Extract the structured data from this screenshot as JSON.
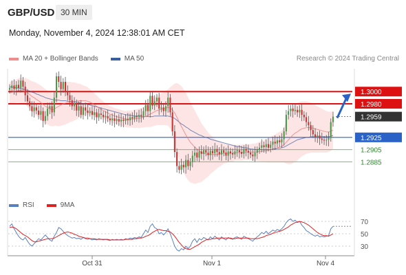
{
  "header": {
    "symbol": "GBP/USD",
    "timeframe": "30 MIN",
    "datetime": "Monday, November 4, 2024 12:38:01 AM CET"
  },
  "legend": {
    "price": [
      {
        "label": "MA 20 + Bollinger Bands",
        "color": "#f08c8c"
      },
      {
        "label": "MA 50",
        "color": "#3a5fa0"
      }
    ],
    "rsi": [
      {
        "label": "RSI",
        "color": "#5a7fc0"
      },
      {
        "label": "9MA",
        "color": "#dd2222"
      }
    ]
  },
  "credit": "Research © 2024 Trading Central",
  "colors": {
    "up_candle": "#4a9a4a",
    "down_candle": "#c83232",
    "resistance": "#dd1111",
    "pivot": "#2a62c8",
    "support": "#6fbf6f",
    "last_price": "#333333",
    "band_fill": "#fde0e0",
    "arrow": "#2a62c8"
  },
  "chart_data": {
    "type": "candlestick",
    "price_range": [
      1.2855,
      1.3043
    ],
    "x_tick_labels": [
      "Oct 31",
      "Nov 1",
      "Nov 4"
    ],
    "levels": [
      {
        "label": "1.3000",
        "value": 1.3,
        "role": "resistance"
      },
      {
        "label": "1.2980",
        "value": 1.298,
        "role": "resistance"
      },
      {
        "label": "1.2959",
        "value": 1.2959,
        "role": "last"
      },
      {
        "label": "1.2925",
        "value": 1.2925,
        "role": "pivot"
      },
      {
        "label": "1.2905",
        "value": 1.2905,
        "role": "support"
      },
      {
        "label": "1.2885",
        "value": 1.2885,
        "role": "support"
      }
    ],
    "close": [
      1.3006,
      1.301,
      1.3004,
      1.3011,
      1.3006,
      1.3018,
      1.3008,
      1.2994,
      1.2984,
      1.2976,
      1.2968,
      1.2974,
      1.2969,
      1.2962,
      1.2968,
      1.2952,
      1.296,
      1.2972,
      1.2976,
      1.2966,
      1.299,
      1.3025,
      1.3016,
      1.3004,
      1.3016,
      1.3,
      1.2994,
      1.2986,
      1.2976,
      1.2981,
      1.2969,
      1.2976,
      1.2962,
      1.2974,
      1.2969,
      1.2965,
      1.2968,
      1.2962,
      1.2966,
      1.2958,
      1.2964,
      1.2962,
      1.2958,
      1.296,
      1.2956,
      1.2953,
      1.2956,
      1.2952,
      1.2955,
      1.2951,
      1.2954,
      1.2952,
      1.2955,
      1.2953,
      1.2958,
      1.2956,
      1.296,
      1.2958,
      1.2962,
      1.296,
      1.2968,
      1.2978,
      1.2968,
      1.2993,
      1.2977,
      1.2984,
      1.299,
      1.2972,
      1.2974,
      1.2968,
      1.2976,
      1.299,
      1.2966,
      1.2935,
      1.2901,
      1.2878,
      1.2872,
      1.288,
      1.2876,
      1.2888,
      1.2878,
      1.2885,
      1.2895,
      1.29,
      1.2892,
      1.2902,
      1.2898,
      1.2904,
      1.29,
      1.2896,
      1.2903,
      1.2899,
      1.2906,
      1.2901,
      1.2897,
      1.2904,
      1.29,
      1.2895,
      1.2902,
      1.2899,
      1.2897,
      1.2902,
      1.2904,
      1.2901,
      1.2898,
      1.2906,
      1.2903,
      1.29,
      1.2897,
      1.2894,
      1.29,
      1.2904,
      1.2908,
      1.2912,
      1.2909,
      1.2914,
      1.2908,
      1.2913,
      1.2918,
      1.2915,
      1.292,
      1.2917,
      1.2922,
      1.2935,
      1.2962,
      1.2968,
      1.2972,
      1.2968,
      1.297,
      1.2966,
      1.297,
      1.2962,
      1.2958,
      1.295,
      1.2945,
      1.2937,
      1.293,
      1.2925,
      1.2928,
      1.2923,
      1.2921,
      1.292,
      1.2921,
      1.2924,
      1.295,
      1.2959
    ],
    "ma20": [
      1.2998,
      1.2999,
      1.3,
      1.3001,
      1.3002,
      1.3002,
      1.3001,
      1.3,
      1.2998,
      1.2995,
      1.2992,
      1.299,
      1.2987,
      1.2985,
      1.2982,
      1.2979,
      1.2976,
      1.2974,
      1.2972,
      1.297,
      1.2971,
      1.2974,
      1.2976,
      1.2978,
      1.298,
      1.2981,
      1.2982,
      1.2983,
      1.2983,
      1.2984,
      1.2984,
      1.2985,
      1.2985,
      1.2985,
      1.2985,
      1.2984,
      1.2983,
      1.2981,
      1.2978,
      1.2976,
      1.2973,
      1.2971,
      1.2969,
      1.2967,
      1.2965,
      1.2963,
      1.2962,
      1.296,
      1.2959,
      1.2958,
      1.2957,
      1.2956,
      1.2955,
      1.2955,
      1.2955,
      1.2955,
      1.2955,
      1.2956,
      1.2956,
      1.2957,
      1.2958,
      1.296,
      1.2961,
      1.2963,
      1.2965,
      1.2967,
      1.2969,
      1.297,
      1.2971,
      1.2972,
      1.2973,
      1.2974,
      1.2973,
      1.297,
      1.2965,
      1.2958,
      1.295,
      1.2943,
      1.2936,
      1.2929,
      1.2923,
      1.2917,
      1.2913,
      1.2909,
      1.2906,
      1.2903,
      1.29,
      1.2899,
      1.2898,
      1.2897,
      1.2897,
      1.2897,
      1.2897,
      1.2897,
      1.2898,
      1.2898,
      1.2899,
      1.2899,
      1.2899,
      1.2899,
      1.2899,
      1.29,
      1.29,
      1.29,
      1.29,
      1.2901,
      1.2901,
      1.2901,
      1.2901,
      1.2901,
      1.2901,
      1.2901,
      1.2902,
      1.2902,
      1.2903,
      1.2903,
      1.2904,
      1.2905,
      1.2906,
      1.2907,
      1.2908,
      1.2909,
      1.291,
      1.2913,
      1.2917,
      1.2921,
      1.2925,
      1.2929,
      1.2932,
      1.2934,
      1.2937,
      1.2939,
      1.294,
      1.2941,
      1.2941,
      1.2941,
      1.294,
      1.2939,
      1.2938,
      1.2937,
      1.2936,
      1.2935,
      1.2934,
      1.2934,
      1.2935,
      1.2937
    ],
    "ma50": [
      1.3008,
      1.3007,
      1.3007,
      1.3006,
      1.3006,
      1.3005,
      1.3004,
      1.3003,
      1.3002,
      1.3001,
      1.2999,
      1.2998,
      1.2996,
      1.2995,
      1.2993,
      1.2992,
      1.299,
      1.2989,
      1.2988,
      1.2987,
      1.2986,
      1.2986,
      1.2986,
      1.2985,
      1.2985,
      1.2985,
      1.2984,
      1.2984,
      1.2983,
      1.2983,
      1.2982,
      1.2982,
      1.2981,
      1.298,
      1.298,
      1.2979,
      1.2978,
      1.2977,
      1.2976,
      1.2975,
      1.2974,
      1.2973,
      1.2972,
      1.2971,
      1.297,
      1.2969,
      1.2968,
      1.2967,
      1.2966,
      1.2965,
      1.2964,
      1.2963,
      1.2962,
      1.2962,
      1.2961,
      1.2961,
      1.296,
      1.296,
      1.296,
      1.2959,
      1.2959,
      1.2959,
      1.2959,
      1.2959,
      1.2959,
      1.296,
      1.296,
      1.296,
      1.296,
      1.296,
      1.296,
      1.296,
      1.2959,
      1.2958,
      1.2956,
      1.2953,
      1.295,
      1.2947,
      1.2945,
      1.2942,
      1.294,
      1.2937,
      1.2935,
      1.2933,
      1.2931,
      1.2929,
      1.2928,
      1.2926,
      1.2925,
      1.2924,
      1.2922,
      1.2921,
      1.292,
      1.2919,
      1.2918,
      1.2917,
      1.2916,
      1.2915,
      1.2914,
      1.2913,
      1.2912,
      1.2911,
      1.291,
      1.291,
      1.2909,
      1.2908,
      1.2908,
      1.2907,
      1.2906,
      1.2906,
      1.2905,
      1.2905,
      1.2905,
      1.2905,
      1.2905,
      1.2905,
      1.2905,
      1.2905,
      1.2906,
      1.2906,
      1.2907,
      1.2907,
      1.2908,
      1.2909,
      1.2911,
      1.2913,
      1.2915,
      1.2917,
      1.2919,
      1.2921,
      1.2922,
      1.2923,
      1.2924,
      1.2925,
      1.2925,
      1.2926,
      1.2926,
      1.2926,
      1.2926,
      1.2926,
      1.2926,
      1.2926,
      1.2926,
      1.2926,
      1.2927,
      1.2928
    ],
    "band_width": [
      0.0018,
      0.0018,
      0.0019,
      0.0019,
      0.002,
      0.0021,
      0.0021,
      0.0022,
      0.0023,
      0.0024,
      0.0025,
      0.0026,
      0.0027,
      0.0027,
      0.0028,
      0.0028,
      0.0028,
      0.0028,
      0.0028,
      0.0027,
      0.0027,
      0.003,
      0.0033,
      0.0034,
      0.0035,
      0.0035,
      0.0034,
      0.0033,
      0.0032,
      0.0031,
      0.003,
      0.0028,
      0.0027,
      0.0025,
      0.0024,
      0.0023,
      0.0021,
      0.002,
      0.0019,
      0.0018,
      0.0017,
      0.0016,
      0.0015,
      0.0014,
      0.0014,
      0.0013,
      0.0013,
      0.0013,
      0.0013,
      0.0013,
      0.0013,
      0.0013,
      0.0013,
      0.0014,
      0.0014,
      0.0014,
      0.0015,
      0.0015,
      0.0016,
      0.0016,
      0.0017,
      0.0018,
      0.0019,
      0.0021,
      0.0022,
      0.0023,
      0.0024,
      0.0025,
      0.0026,
      0.0027,
      0.0028,
      0.003,
      0.0034,
      0.004,
      0.0048,
      0.0056,
      0.0062,
      0.0066,
      0.0068,
      0.0069,
      0.0068,
      0.0066,
      0.0063,
      0.006,
      0.0056,
      0.0052,
      0.0048,
      0.0044,
      0.004,
      0.0036,
      0.0032,
      0.0029,
      0.0026,
      0.0023,
      0.0021,
      0.0019,
      0.0017,
      0.0016,
      0.0015,
      0.0014,
      0.0014,
      0.0013,
      0.0013,
      0.0013,
      0.0013,
      0.0013,
      0.0013,
      0.0013,
      0.0013,
      0.0014,
      0.0014,
      0.0015,
      0.0016,
      0.0017,
      0.0018,
      0.0019,
      0.002,
      0.0021,
      0.0022,
      0.0023,
      0.0024,
      0.0025,
      0.0026,
      0.0029,
      0.0035,
      0.004,
      0.0044,
      0.0046,
      0.0047,
      0.0047,
      0.0046,
      0.0045,
      0.0044,
      0.0043,
      0.0042,
      0.0041,
      0.004,
      0.0039,
      0.0038,
      0.0037,
      0.0036,
      0.0035,
      0.0034,
      0.0033,
      0.0032,
      0.0031
    ],
    "rsi": {
      "range": [
        20,
        80
      ],
      "tick_labels": [
        "70",
        "50",
        "30"
      ],
      "tick_values": [
        70,
        50,
        30
      ],
      "rsi": [
        62,
        66,
        58,
        52,
        46,
        42,
        40,
        44,
        38,
        33,
        30,
        34,
        38,
        42,
        40,
        44,
        48,
        44,
        40,
        38,
        46,
        52,
        60,
        58,
        54,
        50,
        47,
        45,
        43,
        44,
        42,
        43,
        41,
        44,
        42,
        41,
        42,
        40,
        41,
        40,
        42,
        41,
        40,
        41,
        40,
        39,
        41,
        40,
        41,
        40,
        41,
        40,
        42,
        41,
        43,
        42,
        44,
        43,
        45,
        44,
        50,
        56,
        52,
        62,
        66,
        60,
        58,
        50,
        52,
        48,
        52,
        58,
        50,
        40,
        30,
        24,
        22,
        26,
        24,
        30,
        26,
        30,
        38,
        42,
        36,
        42,
        40,
        44,
        42,
        40,
        45,
        42,
        46,
        43,
        40,
        45,
        42,
        40,
        44,
        42,
        41,
        44,
        45,
        43,
        41,
        46,
        44,
        42,
        40,
        38,
        42,
        45,
        48,
        52,
        50,
        54,
        50,
        53,
        56,
        54,
        57,
        55,
        58,
        62,
        68,
        72,
        74,
        70,
        72,
        68,
        70,
        64,
        60,
        55,
        53,
        50,
        48,
        46,
        48,
        45,
        46,
        45,
        46,
        47,
        58,
        62
      ],
      "ma9": [
        60,
        61,
        60,
        58,
        55,
        52,
        49,
        47,
        45,
        42,
        39,
        37,
        37,
        38,
        39,
        40,
        41,
        42,
        42,
        42,
        43,
        45,
        47,
        49,
        51,
        52,
        53,
        52,
        51,
        49,
        48,
        46,
        45,
        44,
        43,
        43,
        42,
        42,
        42,
        41,
        41,
        41,
        41,
        41,
        41,
        40,
        40,
        40,
        40,
        40,
        40,
        40,
        41,
        41,
        41,
        41,
        42,
        42,
        43,
        43,
        44,
        46,
        47,
        49,
        52,
        54,
        56,
        57,
        56,
        55,
        55,
        54,
        53,
        50,
        46,
        41,
        36,
        32,
        28,
        26,
        25,
        25,
        27,
        29,
        31,
        33,
        36,
        38,
        40,
        41,
        41,
        42,
        42,
        43,
        43,
        43,
        43,
        43,
        43,
        43,
        42,
        42,
        43,
        43,
        43,
        43,
        43,
        43,
        42,
        42,
        42,
        42,
        43,
        44,
        45,
        47,
        48,
        49,
        51,
        52,
        53,
        54,
        55,
        57,
        59,
        61,
        64,
        66,
        68,
        69,
        70,
        69,
        68,
        66,
        64,
        61,
        58,
        55,
        52,
        50,
        48,
        47,
        47,
        46,
        48,
        50
      ]
    }
  }
}
